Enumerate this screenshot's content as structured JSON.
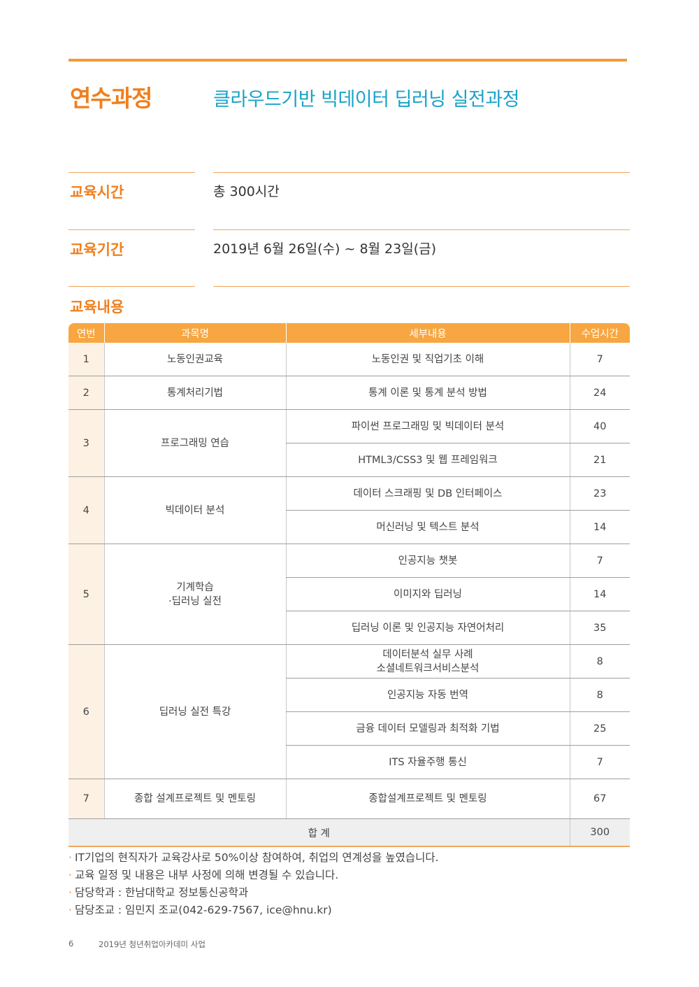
{
  "header": {
    "course_label": "연수과정",
    "course_title": "클라우드기반 빅데이터 딥러닝 실전과정"
  },
  "info": {
    "hours_label": "교육시간",
    "hours_value": "총 300시간",
    "period_label": "교육기간",
    "period_value": "2019년 6월 26일(수) ~ 8월 23일(금)",
    "content_label": "교육내용"
  },
  "table": {
    "headers": [
      "연번",
      "과목명",
      "세부내용",
      "수업시간"
    ],
    "groups": [
      {
        "no": "1",
        "subject": "노동인권교육",
        "rows": [
          {
            "detail": "노동인권 및 직업기초 이해",
            "hours": "7"
          }
        ]
      },
      {
        "no": "2",
        "subject": "통계처리기법",
        "rows": [
          {
            "detail": "통계 이론 및 통계 분석 방법",
            "hours": "24"
          }
        ]
      },
      {
        "no": "3",
        "subject": "프로그래밍 연습",
        "rows": [
          {
            "detail": "파이썬 프로그래밍 및 빅데이터 분석",
            "hours": "40"
          },
          {
            "detail": "HTML3/CSS3 및 웹 프레임워크",
            "hours": "21"
          }
        ]
      },
      {
        "no": "4",
        "subject": "빅데이터 분석",
        "rows": [
          {
            "detail": "데이터 스크래핑 및 DB 인터페이스",
            "hours": "23"
          },
          {
            "detail": "머신러닝 및 텍스트 분석",
            "hours": "14"
          }
        ]
      },
      {
        "no": "5",
        "subject": "기계학습\n·딥러닝 실전",
        "rows": [
          {
            "detail": "인공지능 챗봇",
            "hours": "7"
          },
          {
            "detail": "이미지와 딥러닝",
            "hours": "14"
          },
          {
            "detail": "딥러닝 이론 및 인공지능 자연어처리",
            "hours": "35"
          }
        ]
      },
      {
        "no": "6",
        "subject": "딥러닝 실전 특강",
        "rows": [
          {
            "detail": "데이터분석 실무 사례\n소셜네트워크서비스분석",
            "hours": "8"
          },
          {
            "detail": "인공지능 자동 번역",
            "hours": "8"
          },
          {
            "detail": "금융 데이터 모델링과 최적화 기법",
            "hours": "25"
          },
          {
            "detail": "ITS 자율주행 통신",
            "hours": "7"
          }
        ]
      },
      {
        "no": "7",
        "subject": "종합 설계프로젝트 및 멘토링",
        "rows": [
          {
            "detail": "종합설계프로젝트 및 멘토링",
            "hours": "67"
          }
        ]
      }
    ],
    "total_label": "합 계",
    "total_value": "300"
  },
  "notes": [
    "IT기업의 현직자가 교육강사로 50%이상 참여하여, 취업의 연계성을 높였습니다.",
    "교육 일정 및 내용은 내부 사정에 의해 변경될 수 있습니다.",
    "담당학과 : 한남대학교 정보통신공학과",
    "담당조교 : 임민지 조교(042-629-7567, ice@hnu.kr)"
  ],
  "footer": {
    "page_number": "6",
    "publication": "2019년 청년취업아카데미 사업"
  }
}
